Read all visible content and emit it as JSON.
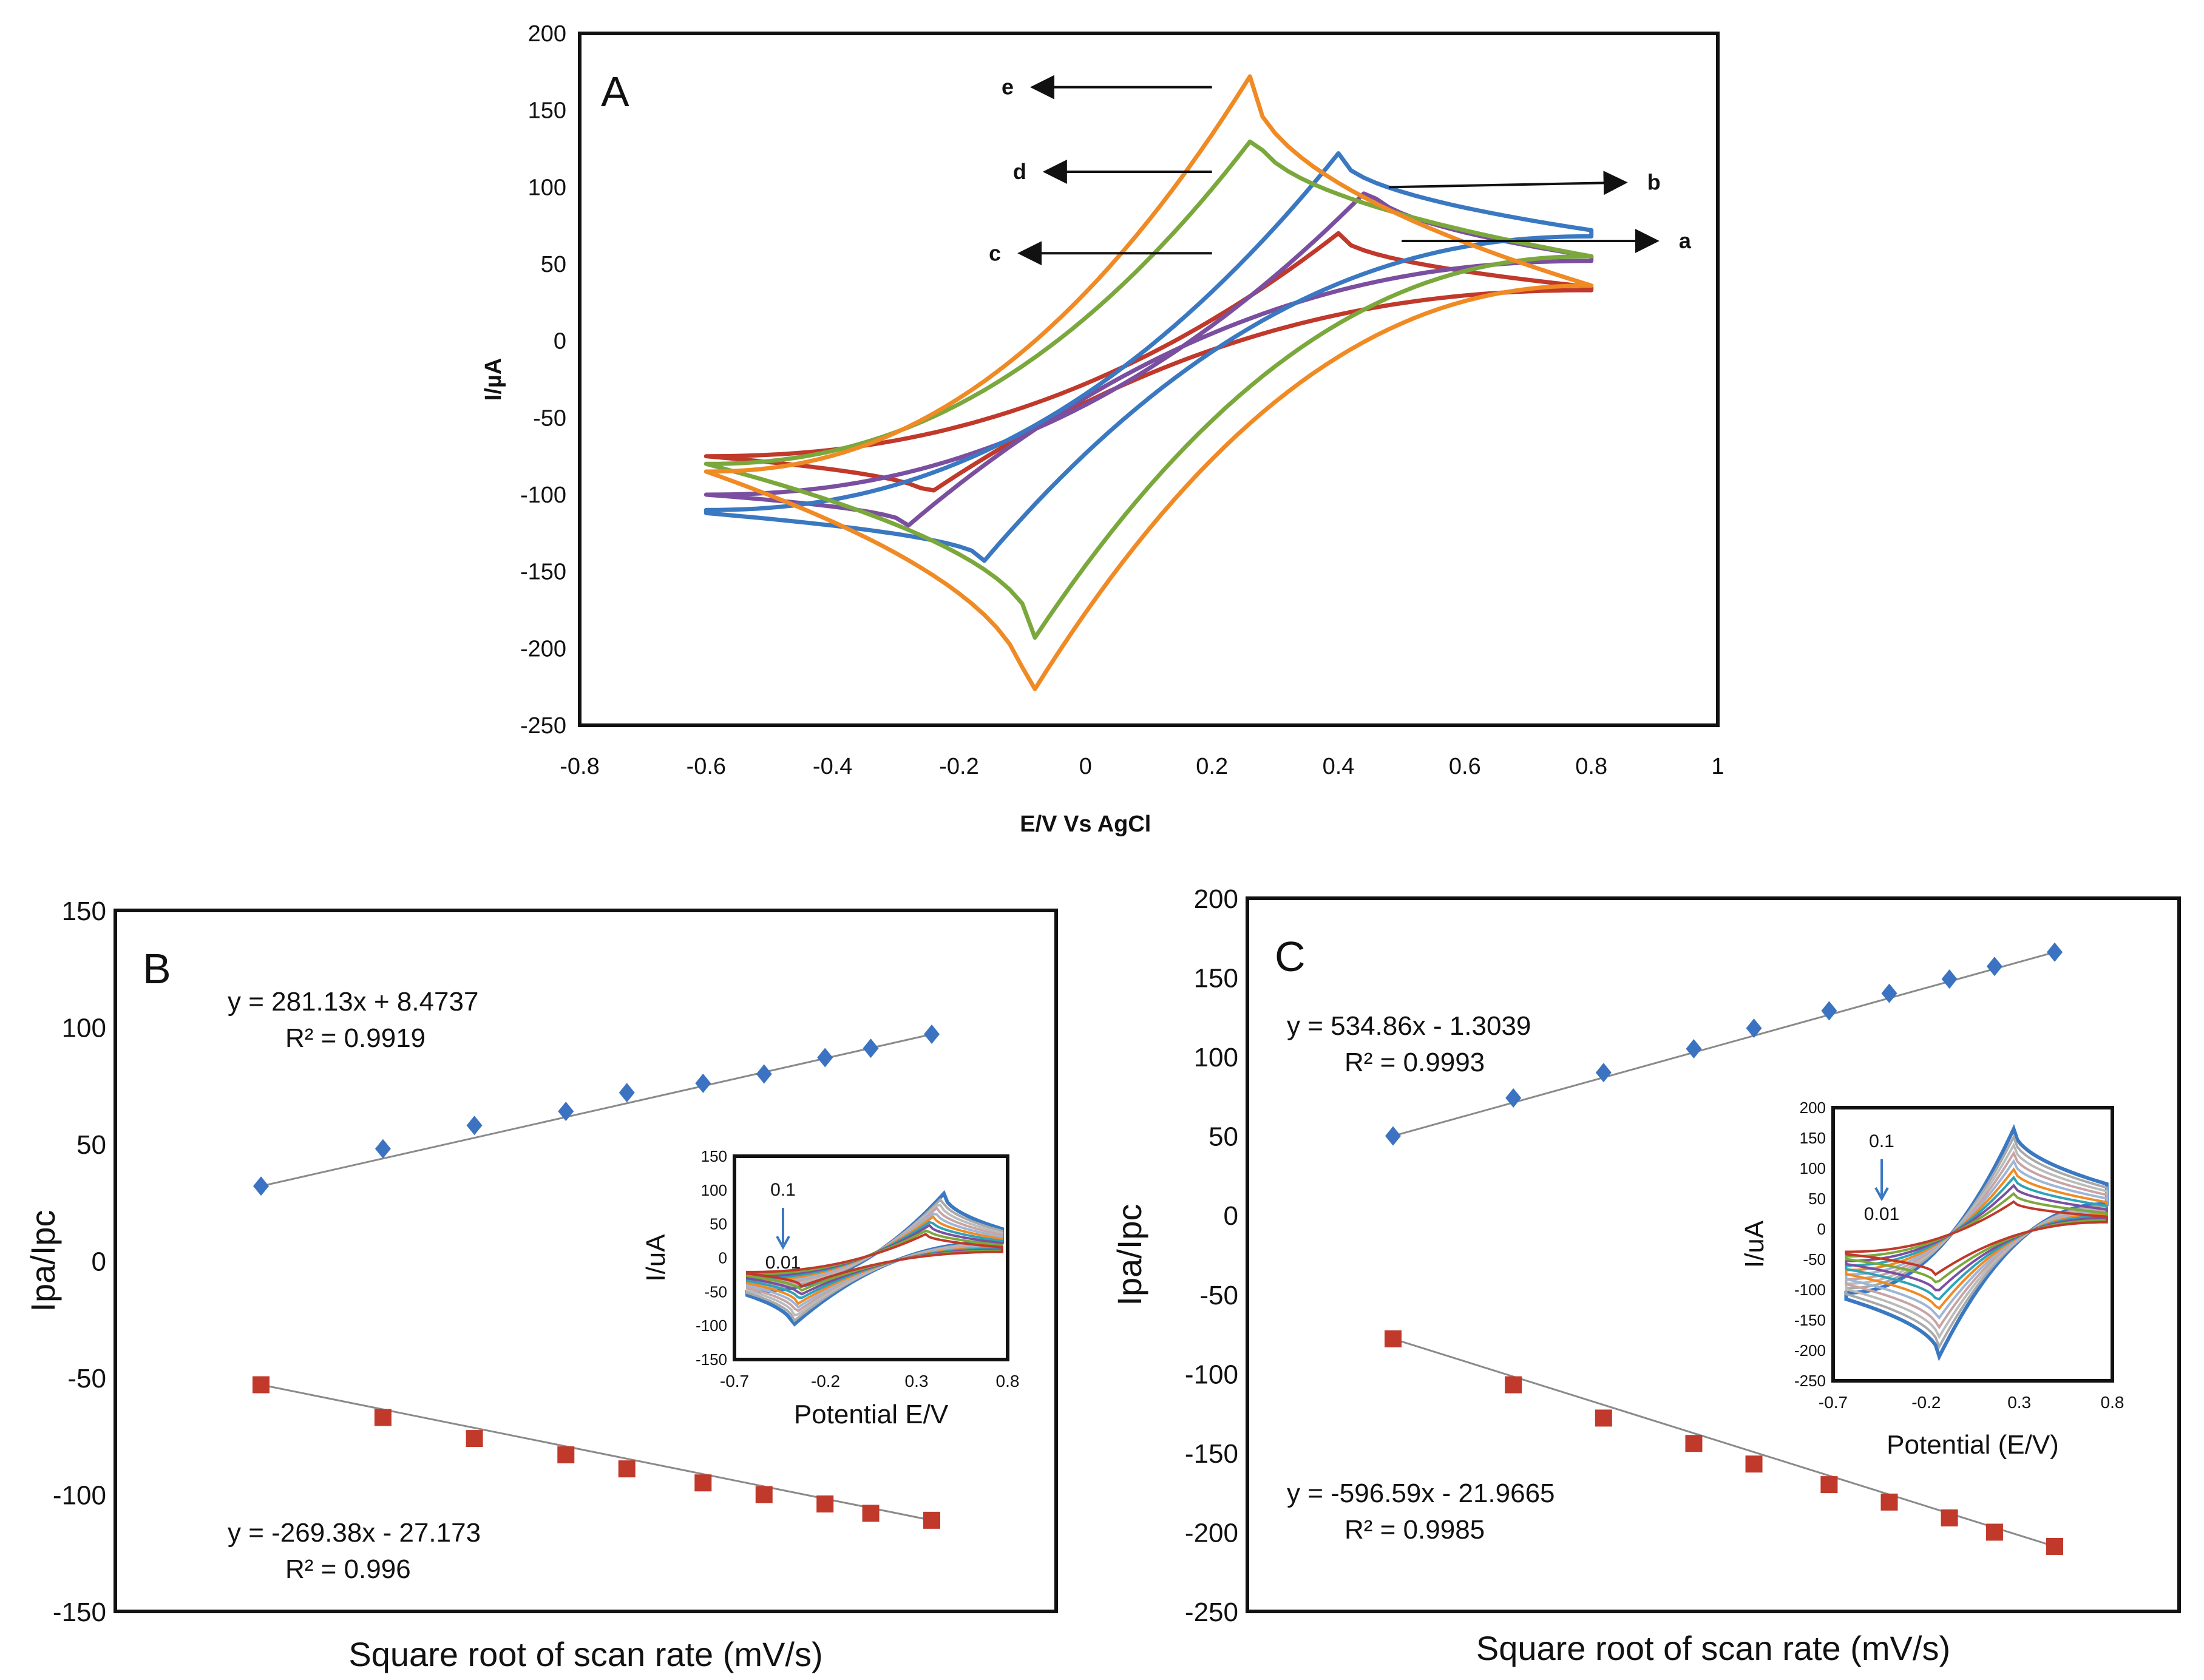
{
  "chart_data": [
    {
      "id": "A",
      "type": "line",
      "panel_label": "A",
      "xlabel": "E/V Vs AgCl",
      "ylabel": "I/µA",
      "xlim": [
        -0.8,
        1
      ],
      "ylim": [
        -250,
        200
      ],
      "xticks": [
        -0.8,
        -0.6,
        -0.4,
        -0.2,
        0,
        0.2,
        0.4,
        0.6,
        0.8,
        1
      ],
      "xtick_labels": [
        "-0.8",
        "-0.6",
        "-0.4",
        "-0.2",
        "0",
        "0.2",
        "0.4",
        "0.6",
        "0.8",
        "1"
      ],
      "yticks": [
        200,
        150,
        100,
        50,
        0,
        -50,
        -100,
        -150,
        -200,
        -250
      ],
      "ytick_labels": [
        "200",
        "150",
        "100",
        "50",
        "0",
        "-50",
        "-100",
        "-150",
        "-200",
        "-250"
      ],
      "series": [
        {
          "name": "a",
          "color": "#c0392b",
          "anodic_peak": [
            0.4,
            70
          ],
          "cathodic_peak": [
            -0.25,
            -100
          ],
          "end_high": [
            0.8,
            35
          ],
          "end_low": [
            -0.6,
            -75
          ],
          "upper_start": -75,
          "lower_end": 33,
          "ipa_min": 0
        },
        {
          "name": "b",
          "color": "#7b4fa0",
          "anodic_peak": [
            0.45,
            100
          ],
          "cathodic_peak": [
            -0.28,
            -120
          ],
          "end_high": [
            0.8,
            55
          ],
          "end_low": [
            -0.6,
            -100
          ],
          "upper_start": -100,
          "lower_end": 52,
          "ipa_min": 0
        },
        {
          "name": "c",
          "color": "#3a78c2",
          "anodic_peak": [
            0.4,
            122
          ],
          "cathodic_peak": [
            -0.16,
            -143
          ],
          "end_high": [
            0.8,
            72
          ],
          "end_low": [
            -0.6,
            -112
          ],
          "upper_start": -110,
          "lower_end": 68,
          "ipa_min": 0
        },
        {
          "name": "d",
          "color": "#7ba83c",
          "anodic_peak": [
            0.27,
            135
          ],
          "cathodic_peak": [
            -0.08,
            -193
          ],
          "end_high": [
            0.8,
            55
          ],
          "end_low": [
            -0.6,
            -80
          ],
          "upper_start": -80,
          "lower_end": 55,
          "ipa_min": 0
        },
        {
          "name": "e",
          "color": "#f08a24",
          "anodic_peak": [
            0.26,
            172
          ],
          "cathodic_peak": [
            -0.09,
            -233
          ],
          "end_high": [
            0.8,
            36
          ],
          "end_low": [
            -0.6,
            -85
          ],
          "upper_start": -85,
          "lower_end": 36,
          "ipa_min": 0
        }
      ],
      "annotations": [
        {
          "label": "e",
          "tail": [
            0.2,
            165
          ],
          "head": [
            -0.08,
            165
          ]
        },
        {
          "label": "d",
          "tail": [
            0.2,
            110
          ],
          "head": [
            -0.06,
            110
          ]
        },
        {
          "label": "c",
          "tail": [
            0.2,
            57
          ],
          "head": [
            -0.1,
            57
          ]
        },
        {
          "label": "b",
          "tail": [
            0.48,
            100
          ],
          "head": [
            0.85,
            103
          ]
        },
        {
          "label": "a",
          "tail": [
            0.5,
            65
          ],
          "head": [
            0.9,
            65
          ]
        }
      ]
    },
    {
      "id": "B",
      "type": "scatter",
      "panel_label": "B",
      "xlabel": "Square root of scan rate (mV/s)",
      "ylabel": "Ipa/Ipc",
      "ylim": [
        -150,
        150
      ],
      "yticks": [
        150,
        100,
        50,
        0,
        -50,
        -100,
        -150
      ],
      "ytick_labels": [
        "150",
        "100",
        "50",
        "0",
        "-50",
        "-100",
        "-150"
      ],
      "x": [
        0.1,
        0.14,
        0.17,
        0.2,
        0.22,
        0.245,
        0.265,
        0.285,
        0.3,
        0.32
      ],
      "series": [
        {
          "name": "Ipa",
          "marker": "diamond",
          "color": "#3b73c2",
          "values": [
            32,
            48,
            58,
            64,
            72,
            76,
            80,
            87,
            91,
            97
          ]
        },
        {
          "name": "Ipc",
          "marker": "square",
          "color": "#c0392b",
          "values": [
            -53,
            -67,
            -76,
            -83,
            -89,
            -95,
            -100,
            -104,
            -108,
            -111
          ]
        }
      ],
      "fit_lines": [
        {
          "series": "Ipa",
          "slope": 281.13,
          "intercept": 8.4737
        },
        {
          "series": "Ipc",
          "slope": -269.38,
          "intercept": -27.173
        }
      ],
      "equations": [
        {
          "text": "y = 281.13x + 8.4737",
          "r2": "R² = 0.9919"
        },
        {
          "text": "y = -269.38x - 27.173",
          "r2": "R² = 0.996"
        }
      ],
      "inset": {
        "type": "line",
        "xlabel": "Potential E/V",
        "ylabel": "I/uA",
        "xlim": [
          -0.7,
          0.8
        ],
        "ylim": [
          -150,
          150
        ],
        "xticks": [
          -0.7,
          -0.2,
          0.3,
          0.8
        ],
        "xtick_labels": [
          "-0.7",
          "-0.2",
          "0.3",
          "0.8"
        ],
        "yticks": [
          150,
          100,
          50,
          0,
          -50,
          -100,
          -150
        ],
        "ytick_labels": [
          "150",
          "100",
          "50",
          "0",
          "-50",
          "-100",
          "-150"
        ],
        "arrow_top": "0.1",
        "arrow_bottom": "0.01",
        "anodic_peak_range": [
          35,
          95
        ],
        "anodic_peak_x": [
          0.38,
          0.48
        ],
        "cathodic_peak_range": [
          -42,
          -100
        ],
        "cathodic_peak_x": [
          -0.3,
          -0.35
        ],
        "curve_count": 10,
        "colors": [
          "#c0392b",
          "#7ba83c",
          "#7b4fa0",
          "#2ea3b5",
          "#f08a24",
          "#9fb5d6",
          "#c8a4a4",
          "#bbbbbb",
          "#a9a9a9",
          "#3a78c2"
        ]
      }
    },
    {
      "id": "C",
      "type": "scatter",
      "panel_label": "C",
      "xlabel": "Square root of scan rate (mV/s)",
      "ylabel": "Ipa/Ipc",
      "ylim": [
        -250,
        200
      ],
      "yticks": [
        200,
        150,
        100,
        50,
        0,
        -50,
        -100,
        -150,
        -200,
        -250
      ],
      "ytick_labels": [
        "200",
        "150",
        "100",
        "50",
        "0",
        "-50",
        "-100",
        "-150",
        "-200",
        "-250"
      ],
      "x": [
        0.1,
        0.14,
        0.17,
        0.2,
        0.22,
        0.245,
        0.265,
        0.285,
        0.3,
        0.32
      ],
      "series": [
        {
          "name": "Ipa",
          "marker": "diamond",
          "color": "#3b73c2",
          "values": [
            50,
            74,
            90,
            105,
            118,
            129,
            140,
            149,
            157,
            166
          ]
        },
        {
          "name": "Ipc",
          "marker": "square",
          "color": "#c0392b",
          "values": [
            -78,
            -107,
            -128,
            -144,
            -157,
            -170,
            -181,
            -191,
            -200,
            -209
          ]
        }
      ],
      "fit_lines": [
        {
          "series": "Ipa",
          "slope": 534.86,
          "intercept": -1.3039
        },
        {
          "series": "Ipc",
          "slope": -596.59,
          "intercept": -21.9665
        }
      ],
      "equations": [
        {
          "text": "y = 534.86x - 1.3039",
          "r2": "R² = 0.9993"
        },
        {
          "text": "y = -596.59x - 21.9665",
          "r2": "R² = 0.9985"
        }
      ],
      "inset": {
        "type": "line",
        "xlabel": "Potential (E/V)",
        "ylabel": "I/uA",
        "xlim": [
          -0.7,
          0.8
        ],
        "ylim": [
          -250,
          200
        ],
        "xticks": [
          -0.7,
          -0.2,
          0.3,
          0.8
        ],
        "xtick_labels": [
          "-0.7",
          "-0.2",
          "0.3",
          "0.8"
        ],
        "yticks": [
          200,
          150,
          100,
          50,
          0,
          -50,
          -100,
          -150,
          -200,
          -250
        ],
        "ytick_labels": [
          "200",
          "150",
          "100",
          "50",
          "0",
          "-50",
          "-100",
          "-150",
          "-200",
          "-250"
        ],
        "arrow_top": "0.1",
        "arrow_bottom": "0.01",
        "anodic_peak_range": [
          45,
          165
        ],
        "anodic_peak_x": [
          0.3,
          0.3
        ],
        "cathodic_peak_range": [
          -75,
          -210
        ],
        "cathodic_peak_x": [
          -0.12,
          -0.1
        ],
        "curve_count": 10,
        "colors": [
          "#c0392b",
          "#7ba83c",
          "#7b4fa0",
          "#2ea3b5",
          "#f08a24",
          "#9fb5d6",
          "#c8a4a4",
          "#bbbbbb",
          "#a9a9a9",
          "#3a78c2"
        ]
      }
    }
  ]
}
